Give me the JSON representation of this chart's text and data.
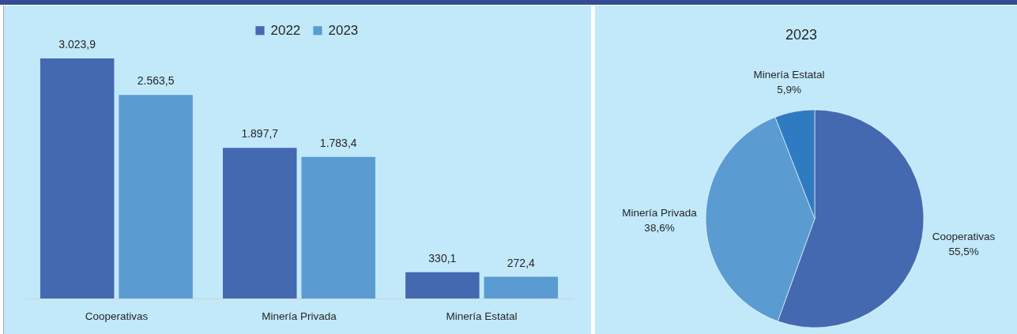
{
  "chart_data": [
    {
      "type": "bar",
      "categories": [
        "Cooperativas",
        "Minería Privada",
        "Minería Estatal"
      ],
      "legend": "top",
      "series": [
        {
          "name": "2022",
          "color": "#4469b0",
          "values": [
            3023.9,
            1897.7,
            330.1
          ],
          "value_labels": [
            "3.023,9",
            "1.897,7",
            "330,1"
          ]
        },
        {
          "name": "2023",
          "color": "#5a9bd2",
          "values": [
            2563.5,
            1783.4,
            272.4
          ],
          "value_labels": [
            "2.563,5",
            "1.783,4",
            "272,4"
          ]
        }
      ]
    },
    {
      "type": "pie",
      "title": "2023",
      "categories": [
        "Cooperativas",
        "Minería Privada",
        "Minería Estatal"
      ],
      "values": [
        55.5,
        38.6,
        5.9
      ],
      "colors": [
        "#4469b0",
        "#5a9bd2",
        "#2f7bc2"
      ],
      "value_labels": [
        "55,5%",
        "38,6%",
        "5,9%"
      ]
    }
  ]
}
